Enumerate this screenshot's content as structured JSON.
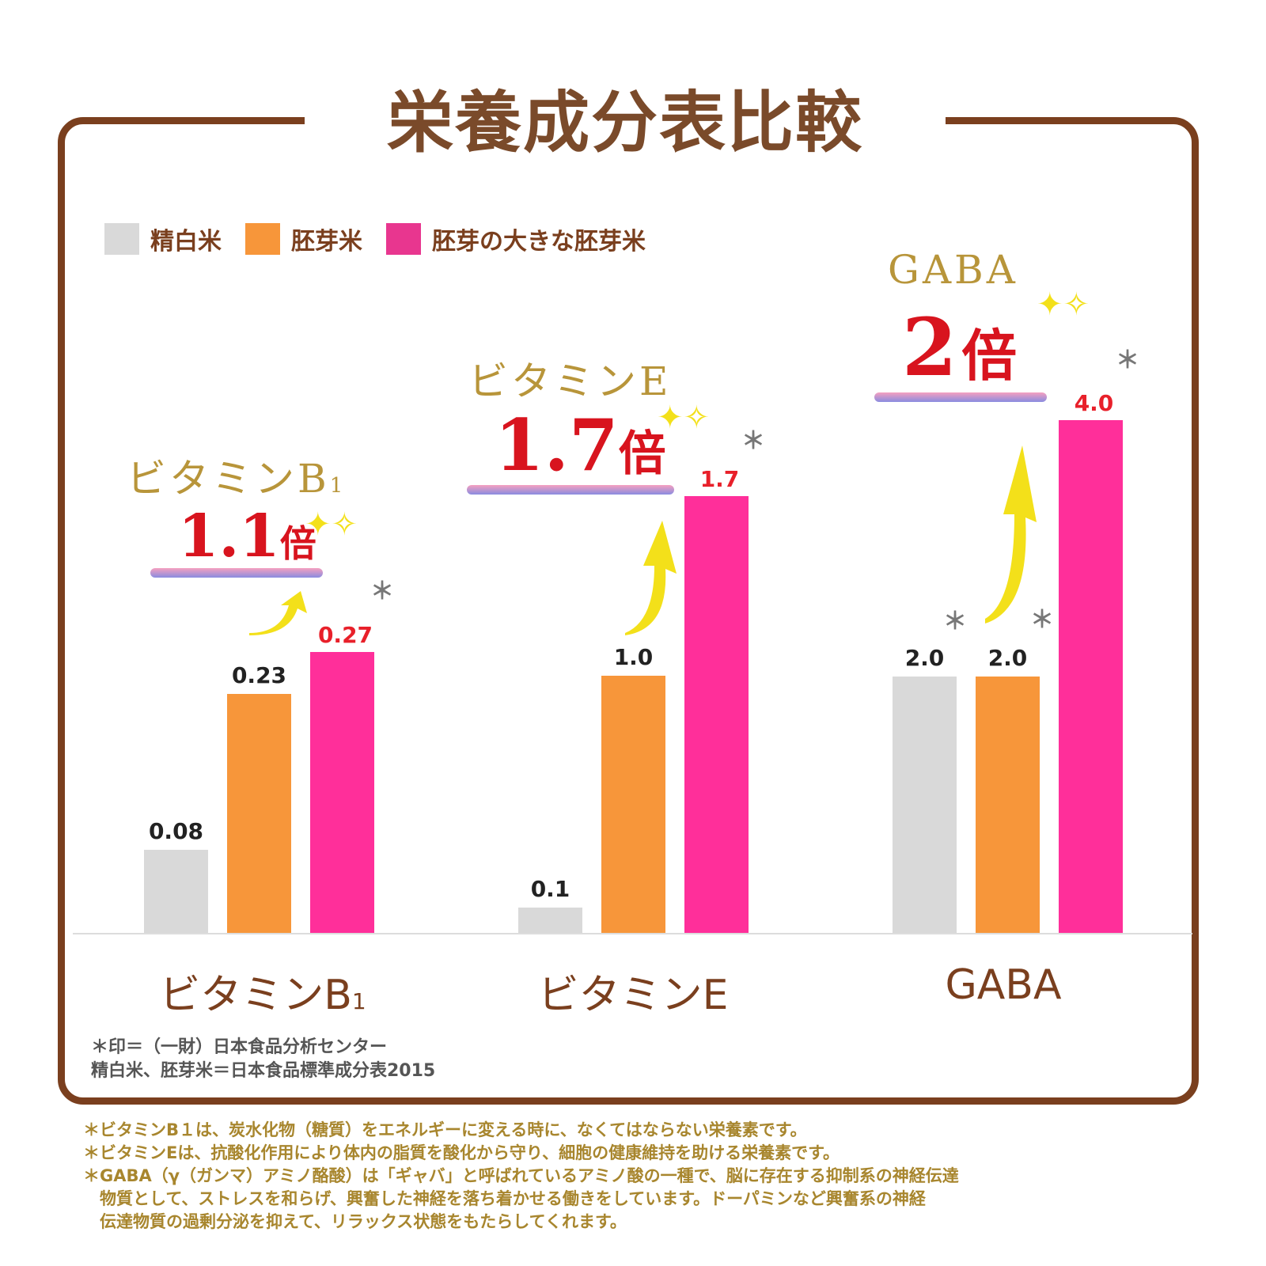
{
  "title": "栄養成分表比較",
  "legend": [
    {
      "label": "精白米",
      "color": "#d9d9d9"
    },
    {
      "label": "胚芽米",
      "color": "#f7963a"
    },
    {
      "label": "胚芽の大きな胚芽米",
      "color": "#ff2f9a"
    }
  ],
  "chart_data": {
    "type": "bar",
    "categories": [
      "ビタミンB1",
      "ビタミンE",
      "GABA"
    ],
    "series": [
      {
        "name": "精白米",
        "values": [
          0.08,
          0.1,
          2.0
        ],
        "labels": [
          "0.08",
          "0.1",
          "2.0"
        ]
      },
      {
        "name": "胚芽米",
        "values": [
          0.23,
          1.0,
          2.0
        ],
        "labels": [
          "0.23",
          "1.0",
          "2.0"
        ]
      },
      {
        "name": "胚芽の大きな胚芽米",
        "values": [
          0.27,
          1.7,
          4.0
        ],
        "labels": [
          "0.27",
          "1.7",
          "4.0"
        ]
      }
    ],
    "independent_scale_per_group": true,
    "grid": false,
    "legend_position": "top-left",
    "annotations": [
      {
        "name": "ビタミンB",
        "sub": "1",
        "multiplier": "1.1",
        "unit": "倍"
      },
      {
        "name": "ビタミンE",
        "multiplier": "1.7",
        "unit": "倍"
      },
      {
        "name": "GABA",
        "multiplier": "2",
        "unit": "倍"
      }
    ],
    "category_labels": [
      {
        "main": "ビタミンB",
        "sub": "1"
      },
      {
        "main": "ビタミンE"
      },
      {
        "main": "GABA"
      }
    ],
    "asterisk": "＊"
  },
  "notes": [
    "＊印＝（一財）日本食品分析センター",
    "精白米、胚芽米＝日本食品標準成分表2015"
  ],
  "footnotes": [
    "＊ビタミンB１は、炭水化物（糖質）をエネルギーに変える時に、なくてはならない栄養素です。",
    "＊ビタミンEは、抗酸化作用により体内の脂質を酸化から守り、細胞の健康維持を助ける栄養素です。",
    "＊GABA（γ（ガンマ）アミノ酪酸）は「ギャバ」と呼ばれているアミノ酸の一種で、脳に存在する抑制系の神経伝達",
    "　物質として、ストレスを和らげ、興奮した神経を落ち着かせる働きをしています。ドーパミンなど興奮系の神経",
    "　伝達物質の過剰分泌を抑えて、リラックス状態をもたらしてくれます。"
  ]
}
